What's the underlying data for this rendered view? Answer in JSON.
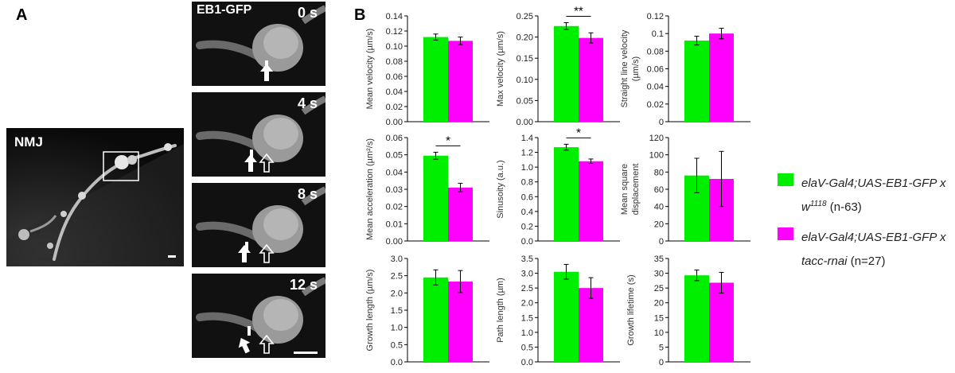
{
  "panels": {
    "a_label": "A",
    "b_label": "B"
  },
  "micrographs": {
    "nmj_label": "NMJ",
    "gfp_label": "EB1-GFP",
    "frames": [
      {
        "time": "0 s"
      },
      {
        "time": "4 s"
      },
      {
        "time": "8 s"
      },
      {
        "time": "12 s"
      }
    ]
  },
  "colors": {
    "control": "#00ee00",
    "rnai": "#ff00ff"
  },
  "legend": [
    {
      "line1": "elaV-Gal4;UAS-EB1-GFP x",
      "line2_italic": "w",
      "line2_sup": "1118",
      "line2_rest": " (n-63)",
      "color": "#00ee00"
    },
    {
      "line1": "elaV-Gal4;UAS-EB1-GFP x",
      "line2_italic": "tacc-rnai",
      "line2_sup": "",
      "line2_rest": " (n=27)",
      "color": "#ff00ff"
    }
  ],
  "chart_data": [
    {
      "type": "bar",
      "ylabel": "Mean velocity (µm/s)",
      "ylim": [
        0,
        0.14
      ],
      "ticks": [
        "0.00",
        "0.02",
        "0.04",
        "0.06",
        "0.08",
        "0.10",
        "0.12",
        "0.14"
      ],
      "values": [
        0.112,
        0.107
      ],
      "errors": [
        0.004,
        0.005
      ],
      "sig": ""
    },
    {
      "type": "bar",
      "ylabel": "Max velocity (µm/s)",
      "ylim": [
        0,
        0.25
      ],
      "ticks": [
        "0.00",
        "0.05",
        "0.10",
        "0.15",
        "0.20",
        "0.25"
      ],
      "values": [
        0.226,
        0.198
      ],
      "errors": [
        0.008,
        0.012
      ],
      "sig": "**"
    },
    {
      "type": "bar",
      "ylabel": "Straight line velocity (µm/s)",
      "ylim": [
        0,
        0.12
      ],
      "ticks": [
        "0",
        "0.02",
        "0.04",
        "0.06",
        "0.08",
        "0.1",
        "0.12"
      ],
      "values": [
        0.092,
        0.1
      ],
      "errors": [
        0.005,
        0.006
      ],
      "sig": ""
    },
    {
      "type": "bar",
      "ylabel": "Mean acceleration (µm²/s)",
      "ylim": [
        0,
        0.06
      ],
      "ticks": [
        "0.00",
        "0.01",
        "0.02",
        "0.03",
        "0.04",
        "0.05",
        "0.06"
      ],
      "values": [
        0.0495,
        0.031
      ],
      "errors": [
        0.002,
        0.0025
      ],
      "sig": "*"
    },
    {
      "type": "bar",
      "ylabel": "Sinusoity (a.u.)",
      "ylim": [
        0,
        1.4
      ],
      "ticks": [
        "0.0",
        "0.2",
        "0.4",
        "0.6",
        "0.8",
        "1.0",
        "1.2",
        "1.4"
      ],
      "values": [
        1.27,
        1.08
      ],
      "errors": [
        0.04,
        0.03
      ],
      "sig": "*"
    },
    {
      "type": "bar",
      "ylabel": "Mean square displacement",
      "ylim": [
        0,
        120
      ],
      "ticks": [
        "0",
        "20",
        "40",
        "60",
        "80",
        "100",
        "120"
      ],
      "values": [
        76,
        72
      ],
      "errors": [
        20,
        32
      ],
      "sig": ""
    },
    {
      "type": "bar",
      "ylabel": "Growth length (µm/s)",
      "ylim": [
        0,
        3.0
      ],
      "ticks": [
        "0.0",
        "0.5",
        "1.0",
        "1.5",
        "2.0",
        "2.5",
        "3.0"
      ],
      "values": [
        2.45,
        2.33
      ],
      "errors": [
        0.22,
        0.32
      ],
      "sig": ""
    },
    {
      "type": "bar",
      "ylabel": "Path length (µm)",
      "ylim": [
        0,
        3.5
      ],
      "ticks": [
        "0.0",
        "0.5",
        "1.0",
        "1.5",
        "2.0",
        "2.5",
        "3.0",
        "3.5"
      ],
      "values": [
        3.05,
        2.5
      ],
      "errors": [
        0.25,
        0.35
      ],
      "sig": ""
    },
    {
      "type": "bar",
      "ylabel": "Growth lifetime (s)",
      "ylim": [
        0,
        35
      ],
      "ticks": [
        "0",
        "5",
        "10",
        "15",
        "20",
        "25",
        "30",
        "35"
      ],
      "values": [
        29.3,
        26.8
      ],
      "errors": [
        1.8,
        3.5
      ],
      "sig": ""
    }
  ]
}
